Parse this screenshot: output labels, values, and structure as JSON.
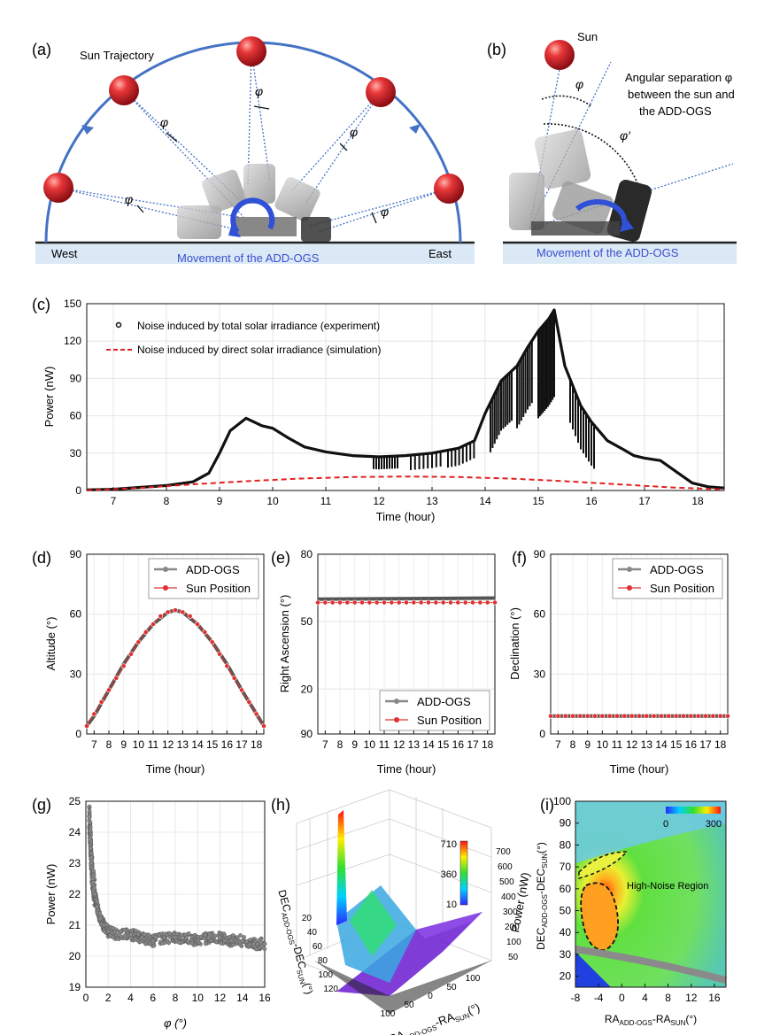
{
  "panels": {
    "a": {
      "label": "(a)",
      "trajectory_label": "Sun Trajectory",
      "west": "West",
      "east": "East",
      "movement": "Movement of the ADD-OGS",
      "phi": "φ"
    },
    "b": {
      "label": "(b)",
      "sun": "Sun",
      "separation_line1": "Angular separation φ",
      "separation_line2": "between the sun and",
      "separation_line3": "the ADD-OGS",
      "phi": "φ",
      "phi_prime": "φ′",
      "movement": "Movement of the ADD-OGS"
    },
    "c": {
      "label": "(c)",
      "ylabel": "Power (nW)",
      "xlabel": "Time (hour)",
      "legend_experiment": "Noise induced by total solar irradiance (experiment)",
      "legend_simulation": "Noise induced by direct solar irradiance (simulation)",
      "yticks": [
        "0",
        "30",
        "60",
        "90",
        "120",
        "150"
      ],
      "xticks": [
        "7",
        "8",
        "9",
        "10",
        "11",
        "12",
        "13",
        "14",
        "15",
        "16",
        "17",
        "18"
      ]
    },
    "d": {
      "label": "(d)",
      "ylabel": "Altitude (°)",
      "xlabel": "Time (hour)",
      "legend_a": "ADD-OGS",
      "legend_b": "Sun Position",
      "yticks": [
        "0",
        "30",
        "60",
        "90"
      ]
    },
    "e": {
      "label": "(e)",
      "ylabel": "Right Ascension (°)",
      "xlabel": "Time (hour)",
      "legend_a": "ADD-OGS",
      "legend_b": "Sun Position",
      "yticks": [
        "90",
        "20",
        "50",
        "80"
      ]
    },
    "f": {
      "label": "(f)",
      "ylabel": "Declination (°)",
      "xlabel": "Time (hour)",
      "legend_a": "ADD-OGS",
      "legend_b": "Sun Position",
      "yticks": [
        "0",
        "30",
        "60",
        "90"
      ]
    },
    "small_xticks": [
      "7",
      "8",
      "9",
      "10",
      "11",
      "12",
      "13",
      "14",
      "15",
      "16",
      "17",
      "18"
    ],
    "g": {
      "label": "(g)",
      "ylabel": "Power (nW)",
      "xlabel": "φ (°)",
      "yticks": [
        "19",
        "20",
        "21",
        "22",
        "23",
        "24",
        "25"
      ],
      "xticks": [
        "0",
        "2",
        "4",
        "6",
        "8",
        "10",
        "12",
        "14",
        "16"
      ]
    },
    "h": {
      "label": "(h)",
      "colorbar": [
        "710",
        "360",
        "10"
      ],
      "power_axis": "Power (nW)",
      "power_ticks": [
        "700",
        "600",
        "500",
        "400",
        "300",
        "200",
        "100",
        "50"
      ],
      "dec_axis": "DEC",
      "dec_sub": "ADD-OGS",
      "dec_mid": "-DEC",
      "dec_sub2": "SUN",
      "dec_unit": "(°)",
      "dec_ticks": [
        "20",
        "40",
        "60",
        "80",
        "100",
        "120"
      ],
      "ra_axis": "RA",
      "ra_sub": "ADD-OGS",
      "ra_mid": "-RA",
      "ra_sub2": "SUN",
      "ra_unit": "(°)",
      "ra_ticks": [
        "100",
        "50",
        "0",
        "50",
        "100"
      ]
    },
    "i": {
      "label": "(i)",
      "colorbar_min": "0",
      "colorbar_max": "300",
      "region": "High-Noise Region",
      "yticks": [
        "20",
        "30",
        "40",
        "50",
        "60",
        "70",
        "80",
        "90",
        "100"
      ],
      "xticks": [
        "-8",
        "-4",
        "0",
        "4",
        "8",
        "12",
        "16"
      ],
      "y_axis": "DEC",
      "y_sub": "ADD-OGS",
      "y_mid": "-DEC",
      "y_sub2": "SUN",
      "y_unit": "(°)",
      "x_axis": "RA",
      "x_sub": "ADD-OGS",
      "x_mid": "-RA",
      "x_sub2": "SUN",
      "x_unit": "(°)"
    }
  },
  "chart_data": [
    {
      "type": "line",
      "panel": "c",
      "xlabel": "Time (hour)",
      "ylabel": "Power (nW)",
      "xlim": [
        6.5,
        18.5
      ],
      "ylim": [
        0,
        150
      ],
      "series": [
        {
          "name": "Noise induced by total solar irradiance (experiment)",
          "x": [
            6.5,
            7.0,
            7.5,
            8.0,
            8.5,
            8.8,
            9.0,
            9.2,
            9.5,
            9.8,
            10.0,
            10.3,
            10.6,
            11.0,
            11.5,
            12.0,
            12.5,
            13.0,
            13.5,
            13.8,
            14.0,
            14.3,
            14.6,
            14.8,
            15.0,
            15.2,
            15.3,
            15.5,
            15.8,
            16.0,
            16.3,
            16.6,
            16.8,
            17.0,
            17.3,
            17.6,
            17.9,
            18.2,
            18.5
          ],
          "y": [
            0.5,
            1,
            2.5,
            4,
            7,
            14,
            30,
            48,
            58,
            52,
            50,
            42,
            35,
            31,
            28,
            27,
            28,
            30,
            34,
            40,
            62,
            88,
            100,
            115,
            128,
            138,
            145,
            100,
            68,
            55,
            40,
            33,
            28,
            26,
            24,
            15,
            6,
            3,
            2
          ]
        },
        {
          "name": "Noise induced by direct solar irradiance (simulation)",
          "x": [
            6.5,
            7.5,
            8.5,
            9.5,
            10.5,
            11.5,
            12.5,
            13.5,
            14.5,
            15.5,
            16.5,
            17.5,
            18.5
          ],
          "y": [
            0.2,
            2,
            5,
            7.5,
            9.5,
            10.8,
            11.2,
            10.8,
            9.5,
            7.5,
            5,
            2.5,
            0.8
          ]
        }
      ]
    },
    {
      "type": "line",
      "panel": "d",
      "ylim": [
        0,
        90
      ],
      "xlim": [
        6.5,
        18.5
      ],
      "series": [
        {
          "name": "ADD-OGS",
          "x": [
            6.5,
            7,
            8,
            9,
            10,
            11,
            12,
            12.5,
            13,
            14,
            15,
            16,
            17,
            18,
            18.5
          ],
          "y": [
            4,
            9,
            22,
            35,
            46,
            55,
            61,
            62,
            61,
            55,
            46,
            35,
            22,
            10,
            4
          ]
        },
        {
          "name": "Sun Position",
          "x": [
            6.5,
            7,
            7.5,
            8,
            8.5,
            9,
            9.5,
            10,
            10.5,
            11,
            11.5,
            12,
            12.5,
            13,
            13.5,
            14,
            14.5,
            15,
            15.5,
            16,
            16.5,
            17,
            17.5,
            18,
            18.5
          ],
          "y": [
            4,
            10,
            16,
            22,
            28,
            34,
            40,
            46,
            51,
            55,
            59,
            61,
            62,
            61,
            59,
            55,
            51,
            46,
            40,
            34,
            28,
            22,
            16,
            10,
            4
          ]
        }
      ]
    },
    {
      "type": "line",
      "panel": "e",
      "ylim": [
        0,
        80
      ],
      "series": [
        {
          "name": "ADD-OGS",
          "x": [
            6.5,
            18.5
          ],
          "y": [
            60,
            60.5
          ]
        },
        {
          "name": "Sun Position",
          "x": [
            6.5,
            18.5
          ],
          "y": [
            58.5,
            58.5
          ]
        }
      ]
    },
    {
      "type": "line",
      "panel": "f",
      "ylim": [
        0,
        90
      ],
      "series": [
        {
          "name": "ADD-OGS",
          "x": [
            6.5,
            18.5
          ],
          "y": [
            9,
            9
          ]
        },
        {
          "name": "Sun Position",
          "x": [
            6.5,
            18.5
          ],
          "y": [
            9,
            9
          ]
        }
      ]
    },
    {
      "type": "scatter",
      "panel": "g",
      "xlabel": "φ (°)",
      "ylabel": "Power (nW)",
      "xlim": [
        0,
        16
      ],
      "ylim": [
        19,
        25
      ],
      "series": [
        {
          "name": "Power vs φ",
          "x": [
            0.3,
            0.4,
            0.5,
            0.6,
            0.8,
            1.0,
            1.3,
            1.6,
            2,
            3,
            4,
            5,
            6,
            7,
            8,
            9,
            10,
            11,
            12,
            13,
            14,
            15,
            16
          ],
          "y": [
            24.5,
            23.8,
            23,
            22.5,
            22,
            21.6,
            21.2,
            21,
            20.8,
            20.7,
            20.7,
            20.6,
            20.5,
            20.6,
            20.6,
            20.6,
            20.5,
            20.6,
            20.6,
            20.5,
            20.5,
            20.4,
            20.4
          ]
        }
      ]
    },
    {
      "type": "heatmap",
      "panel": "i",
      "xlabel": "RA(ADD-OGS)-RA(SUN) (°)",
      "ylabel": "DEC(ADD-OGS)-DEC(SUN) (°)",
      "xlim": [
        -8,
        18
      ],
      "ylim": [
        15,
        100
      ],
      "colorbar_range": [
        0,
        300
      ]
    }
  ]
}
